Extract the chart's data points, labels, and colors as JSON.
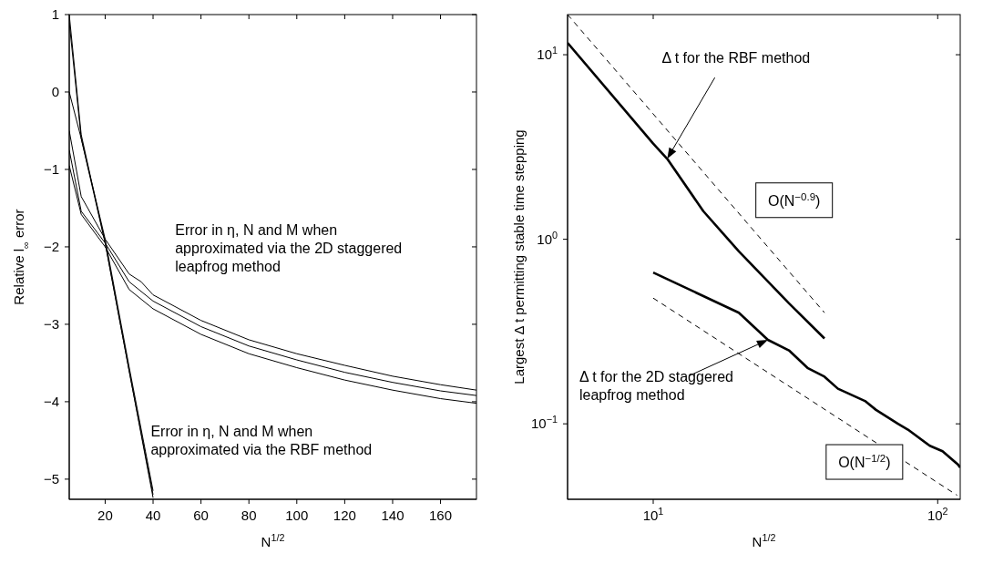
{
  "chart_data": [
    {
      "type": "line",
      "xlabel": "N$^{1/2}$",
      "ylabel": "Relative l$_{∞}$ error",
      "xlim": [
        5,
        175
      ],
      "ylim": [
        -5.26,
        1
      ],
      "xticks": [
        20,
        40,
        60,
        80,
        100,
        120,
        140,
        160
      ],
      "yticks": [
        -5,
        -4,
        -3,
        -2,
        -1,
        0,
        1
      ],
      "marker": "none",
      "line_style": "solid",
      "annotations": [
        "Error in η, N and M when approximated via the 2D staggered leapfrog method",
        "Error in η, N and M when approximated via the RBF method"
      ],
      "series": [
        {
          "color": "#000000",
          "x": [
            5,
            10,
            20,
            30,
            40
          ],
          "values": [
            1,
            -0.55,
            -1.95,
            -3.6,
            -5.2
          ]
        },
        {
          "color": "#000000",
          "x": [
            5,
            10,
            20,
            30,
            40
          ],
          "values": [
            0.9,
            -0.6,
            -1.9,
            -3.55,
            -5.15
          ]
        },
        {
          "color": "#000000",
          "x": [
            5,
            10,
            20,
            30,
            40
          ],
          "values": [
            0,
            -0.6,
            -1.95,
            -3.6,
            -5.24
          ]
        },
        {
          "color": "#000000",
          "x": [
            5,
            10,
            20,
            30,
            35,
            40,
            60,
            80,
            100,
            120,
            140,
            160,
            175
          ],
          "values": [
            -0.5,
            -1.35,
            -1.9,
            -2.35,
            -2.45,
            -2.62,
            -2.95,
            -3.2,
            -3.38,
            -3.53,
            -3.67,
            -3.78,
            -3.85
          ]
        },
        {
          "color": "#000000",
          "x": [
            5,
            10,
            20,
            30,
            40,
            60,
            80,
            100,
            120,
            140,
            160,
            175
          ],
          "values": [
            -0.75,
            -1.54,
            -1.95,
            -2.45,
            -2.7,
            -3.03,
            -3.28,
            -3.46,
            -3.62,
            -3.75,
            -3.86,
            -3.92
          ]
        },
        {
          "color": "#000000",
          "x": [
            5,
            10,
            20,
            30,
            40,
            60,
            80,
            100,
            120,
            140,
            160,
            175
          ],
          "values": [
            -0.95,
            -1.58,
            -2.0,
            -2.55,
            -2.8,
            -3.13,
            -3.38,
            -3.56,
            -3.72,
            -3.85,
            -3.96,
            -4.02
          ]
        }
      ]
    },
    {
      "type": "line",
      "xlabel": "N$^{1/2}$",
      "ylabel": "Largest Δ t permitting stable time stepping",
      "log": "xy",
      "xlim": [
        5,
        120
      ],
      "ylim": [
        0.039,
        16.5
      ],
      "xticks": [
        {
          "value": 10,
          "label": "10$^{1}$"
        },
        {
          "value": 100,
          "label": "10$^{2}$"
        }
      ],
      "yticks": [
        {
          "value": 0.1,
          "label": "10$^{−1}$"
        },
        {
          "value": 1,
          "label": "10$^{0}$"
        },
        {
          "value": 10,
          "label": "10$^{1}$"
        }
      ],
      "marker": "none",
      "line_style": "solid",
      "annotations": [
        "Δ t for the RBF method",
        "Δ t for the 2D staggered leapfrog method",
        "O(N$^{−0.9}$)",
        "O(N$^{−1/2}$)"
      ],
      "series": [
        {
          "color": "#000000",
          "x": [
            5,
            10,
            11.2,
            15,
            20,
            30,
            40
          ],
          "values": [
            11.6,
            3.3,
            2.73,
            1.42,
            0.86,
            0.45,
            0.29
          ]
        },
        {
          "color": "#000000",
          "line_style": "dashed",
          "x": [
            5,
            40
          ],
          "values": [
            16.5,
            0.4
          ]
        },
        {
          "color": "#000000",
          "x": [
            10,
            20,
            25.3,
            30,
            35,
            40,
            44.6,
            55.5,
            60.7,
            72.5,
            78.6,
            93.8,
            104,
            118,
            120
          ],
          "values": [
            0.66,
            0.4,
            0.285,
            0.25,
            0.2,
            0.18,
            0.155,
            0.133,
            0.119,
            0.1,
            0.093,
            0.076,
            0.071,
            0.06,
            0.058
          ]
        },
        {
          "color": "#000000",
          "line_style": "dashed",
          "x": [
            10,
            117
          ],
          "values": [
            0.48,
            0.041
          ]
        }
      ]
    }
  ]
}
